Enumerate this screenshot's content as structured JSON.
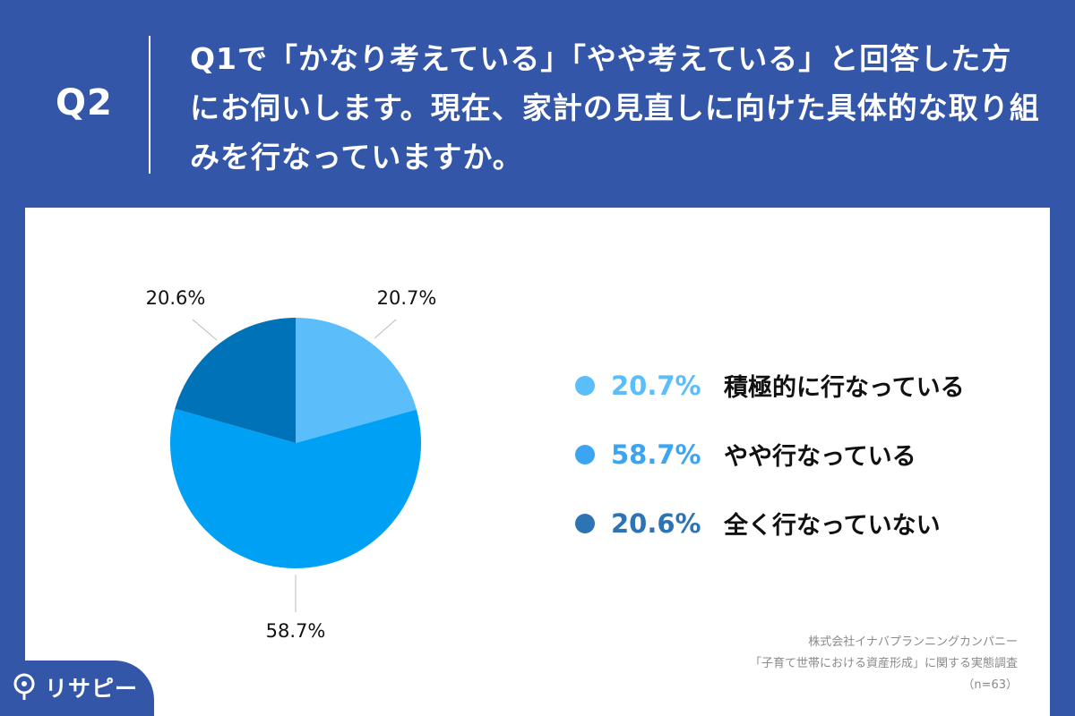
{
  "header": {
    "question_number": "Q2",
    "question_text": "Q1で「かなり考えている」「やや考えている」と回答した方にお伺いします。現在、家計の見直しに向けた具体的な取り組みを行なっていますか。"
  },
  "chart_data": {
    "type": "pie",
    "categories": [
      "積極的に行なっている",
      "やや行なっている",
      "全く行なっていない"
    ],
    "values": [
      20.7,
      58.7,
      20.6
    ],
    "value_labels": [
      "20.7%",
      "58.7%",
      "20.6%"
    ],
    "colors": [
      "#5BBEFA",
      "#00A0F5",
      "#0072B8"
    ],
    "legend_dot_colors": [
      "#5BBEFA",
      "#3BA5F2",
      "#2E74B5"
    ],
    "legend_text_colors": [
      "#5BBEFA",
      "#3BA5F2",
      "#2E74B5"
    ],
    "start_angle_deg": 0,
    "direction": "clockwise",
    "legend_position": "right"
  },
  "source": {
    "company": "株式会社イナバプランニングカンパニー",
    "survey": "「子育て世帯における資産形成」に関する実態調査",
    "sample": "（n=63）"
  },
  "logo": {
    "text": "リサピー"
  }
}
